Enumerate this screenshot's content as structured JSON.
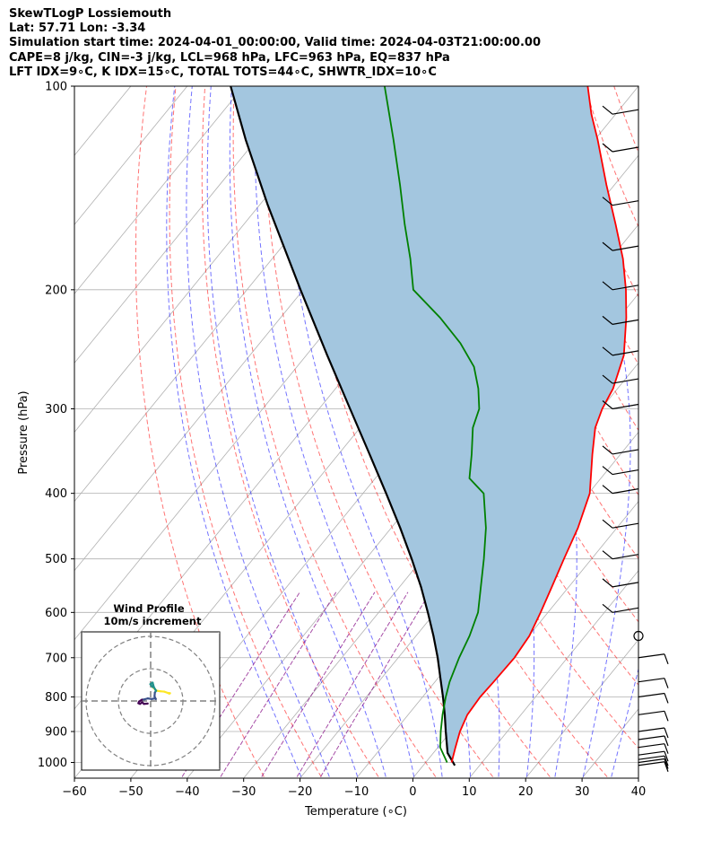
{
  "header": {
    "line1": "SkewTLogP Lossiemouth",
    "line2": "Lat: 57.71   Lon: -3.34",
    "line3": "Simulation start time: 2024-04-01_00:00:00, Valid time: 2024-04-03T21:00:00.00",
    "line4": "CAPE=8 j/kg, CIN=-3 j/kg, LCL=968 hPa, LFC=963 hPa, EQ=837 hPa",
    "line5": "LFT IDX=9∘C, K IDX=15∘C, TOTAL TOTS=44∘C, SHWTR_IDX=10∘C"
  },
  "chart_data": {
    "type": "line",
    "title": "SkewTLogP Lossiemouth",
    "xlabel": "Temperature (∘C)",
    "ylabel": "Pressure (hPa)",
    "xlim": [
      -60,
      40
    ],
    "ylim": [
      1050,
      100
    ],
    "yscale": "log",
    "grid": true,
    "x_ticks": [
      "−60",
      "−50",
      "−40",
      "−30",
      "−20",
      "−10",
      "0",
      "10",
      "20",
      "30",
      "40"
    ],
    "y_ticks": [
      "100",
      "200",
      "300",
      "400",
      "500",
      "600",
      "700",
      "800",
      "900",
      "1000"
    ],
    "series": [
      {
        "color": "#ff0000",
        "pressure": [
          1000,
          950,
          900,
          850,
          800,
          760,
          700,
          650,
          600,
          550,
          500,
          450,
          400,
          350,
          320,
          300,
          280,
          250,
          220,
          200,
          180,
          160,
          140,
          120,
          110,
          100
        ],
        "values": [
          4.6,
          3.1,
          1.6,
          0.5,
          0.2,
          0.4,
          0.6,
          0.1,
          -1.3,
          -3.0,
          -4.9,
          -6.9,
          -9.8,
          -15.0,
          -18.3,
          -19.8,
          -20.8,
          -23.7,
          -28.7,
          -32.8,
          -37.8,
          -44.1,
          -51.4,
          -59.5,
          -64.3,
          -69.0
        ]
      },
      {
        "color": "#008000",
        "pressure": [
          1000,
          950,
          900,
          850,
          800,
          760,
          700,
          650,
          600,
          550,
          500,
          450,
          400,
          380,
          350,
          320,
          300,
          280,
          260,
          240,
          220,
          200,
          180,
          160,
          140,
          120,
          100
        ],
        "values": [
          3.8,
          0.4,
          -1.8,
          -3.9,
          -5.9,
          -7.4,
          -9.2,
          -10.5,
          -12.4,
          -15.6,
          -19.1,
          -23.2,
          -28.6,
          -33.3,
          -36.4,
          -40.0,
          -41.6,
          -44.7,
          -48.6,
          -54.4,
          -61.7,
          -70.5,
          -75.5,
          -81.5,
          -88.0,
          -95.7,
          -105.0
        ]
      },
      {
        "color": "#000000",
        "pressure": [
          1010,
          968,
          900,
          850,
          800,
          750,
          700,
          650,
          600,
          550,
          500,
          450,
          400,
          350,
          300,
          250,
          200,
          150,
          120,
          100
        ],
        "values": [
          5.6,
          2.5,
          -0.9,
          -3.5,
          -6.4,
          -9.6,
          -13.0,
          -16.9,
          -21.3,
          -26.2,
          -31.9,
          -38.4,
          -45.9,
          -54.5,
          -64.5,
          -76.3,
          -90.5,
          -108.5,
          -121.9,
          -132.3
        ]
      }
    ],
    "reference_lines": {
      "isotherms_every_C": 10,
      "dry_adiabats": "red dashed",
      "moist_adiabats": "blue dashed",
      "mixing_ratio": "purple dashed"
    },
    "cape_cin_shading": "#a3c6df",
    "wind_barbs_pressure": [
      1010,
      1000,
      990,
      975,
      950,
      925,
      900,
      850,
      800,
      760,
      700,
      650,
      600,
      550,
      500,
      450,
      400,
      375,
      350,
      300,
      275,
      250,
      225,
      200,
      175,
      150,
      125,
      110
    ],
    "wind_inset": {
      "title_line1": "Wind Profile",
      "title_line2": "10m/s increment",
      "hodograph_u": [
        5.5,
        5.8,
        6.0,
        5.3,
        4.2,
        3.0,
        1.8,
        0.6,
        -0.1,
        0.6,
        1.0,
        1.4,
        1.7,
        1.3,
        1.2,
        1.6,
        1.4,
        0.3,
        -0.9,
        -1.9,
        -2.7,
        -3.6,
        -3.8,
        -3.3,
        -2.6,
        -2.1,
        -0.9
      ],
      "hodograph_v": [
        2.4,
        2.3,
        2.4,
        2.5,
        2.9,
        3.0,
        3.2,
        4.3,
        5.2,
        5.7,
        4.3,
        3.6,
        3.2,
        2.6,
        1.4,
        0.6,
        0.8,
        0.6,
        0.8,
        0.5,
        0.4,
        -0.2,
        -0.7,
        -0.9,
        -0.4,
        -0.9,
        -0.8
      ],
      "colormap": [
        "#fde725",
        "#21918c",
        "#3b528b",
        "#440154"
      ]
    }
  }
}
